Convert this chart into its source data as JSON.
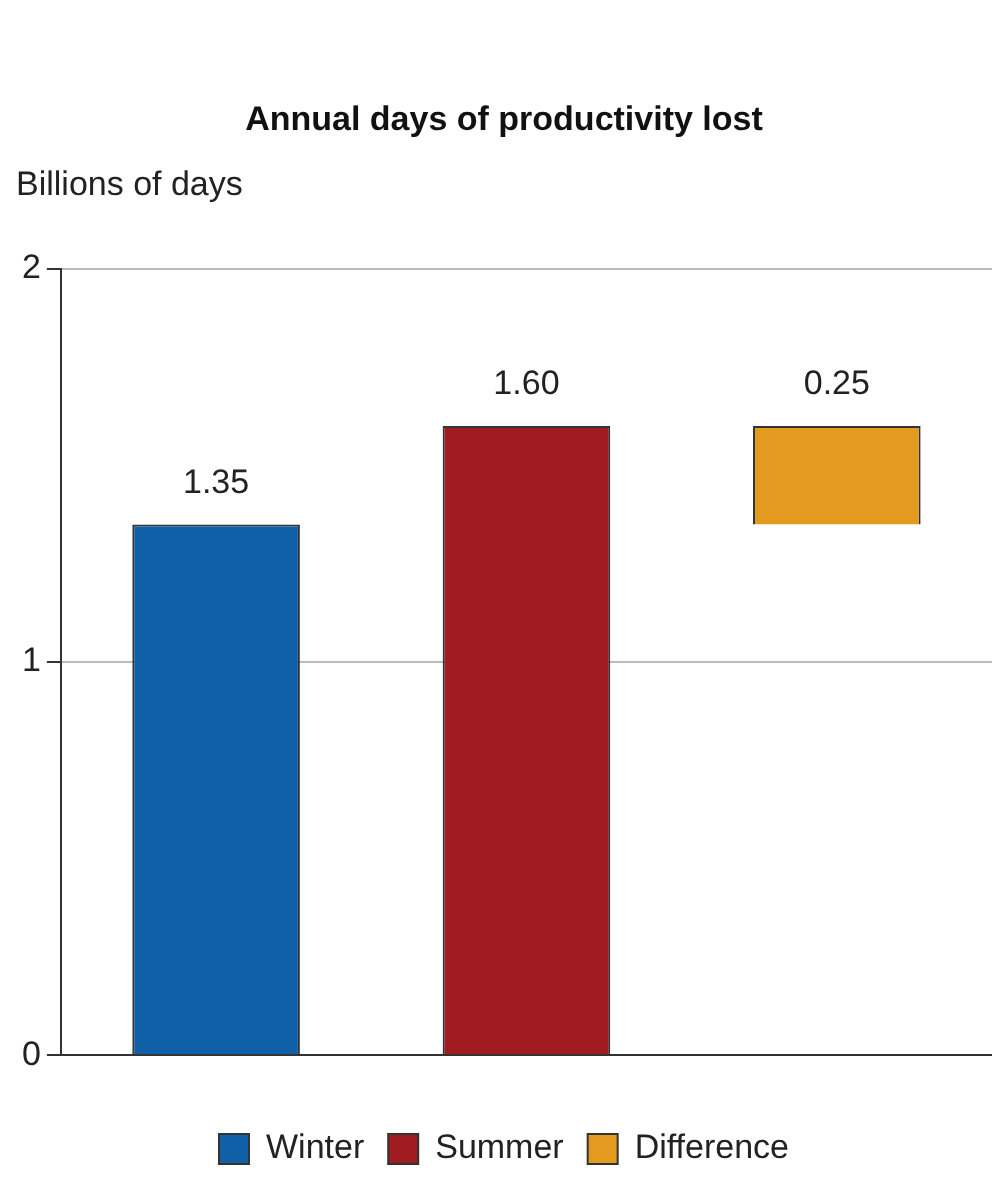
{
  "chart_data": {
    "type": "bar",
    "title": "Annual days of productivity lost",
    "ylabel": "Billions of days",
    "categories": [
      null,
      null,
      null
    ],
    "series": [
      {
        "name": "Winter",
        "color": "#1060a8",
        "values": [
          1.35,
          null,
          null
        ],
        "value_labels": [
          "1.35",
          null,
          null
        ]
      },
      {
        "name": "Summer",
        "color": "#a01c20",
        "values": [
          null,
          1.6,
          null
        ],
        "value_labels": [
          null,
          "1.60",
          null
        ]
      },
      {
        "name": "Difference",
        "color": "#e39a1e",
        "values": [
          null,
          null,
          0.25
        ],
        "base": [
          null,
          null,
          1.35
        ],
        "value_labels": [
          null,
          null,
          "0.25"
        ]
      }
    ],
    "ylim": [
      0,
      2
    ],
    "yticks": [
      0,
      1,
      2
    ],
    "grid": "y",
    "legend": "bottom"
  }
}
